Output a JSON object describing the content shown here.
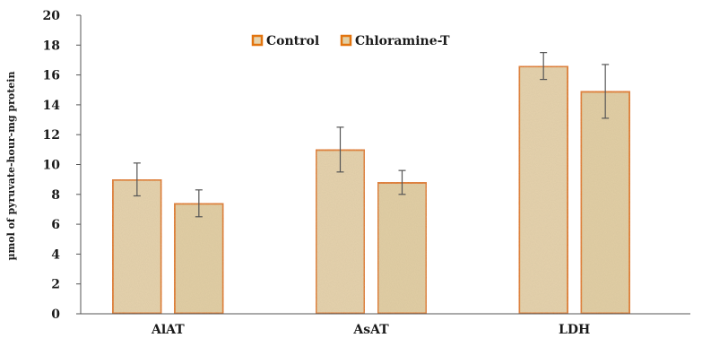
{
  "chart_data": {
    "type": "bar",
    "ylabel": "µmol of pyruvate-hour-mg protein",
    "ylim": [
      0,
      20
    ],
    "yticks": [
      0,
      2,
      4,
      6,
      8,
      10,
      12,
      14,
      16,
      18,
      20
    ],
    "grid": false,
    "legend_position": "top-center",
    "categories": [
      "AlAT",
      "AsAT",
      "LDH"
    ],
    "series": [
      {
        "name": "Control",
        "values": [
          9.0,
          11.0,
          16.6
        ],
        "errors": [
          1.1,
          1.5,
          0.9
        ],
        "fill_color": "#e6d3ad",
        "edge_color": "#e2740f"
      },
      {
        "name": "Chloramine-T",
        "values": [
          7.4,
          8.8,
          14.9
        ],
        "errors": [
          0.9,
          0.8,
          1.8
        ],
        "fill_color": "#e2cfa4",
        "edge_color": "#e2740f"
      }
    ],
    "axis_color": "#555555",
    "error_bar_color": "#555555"
  }
}
